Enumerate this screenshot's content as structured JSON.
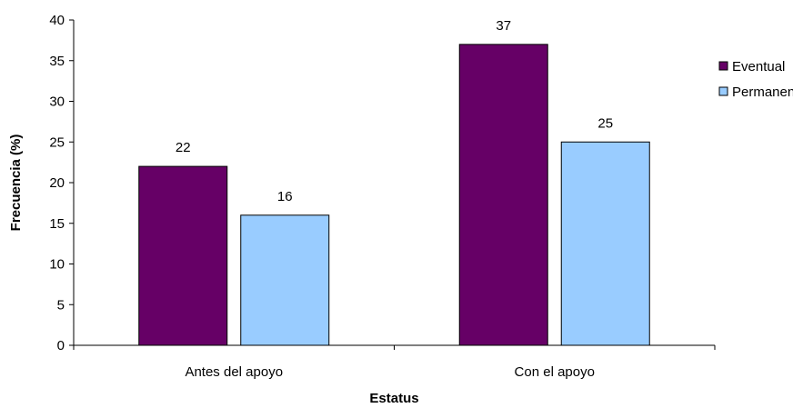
{
  "chart_data": {
    "type": "bar",
    "categories": [
      "Antes del apoyo",
      "Con el apoyo"
    ],
    "series": [
      {
        "name": "Eventual",
        "values": [
          22,
          37
        ],
        "color": "#660066"
      },
      {
        "name": "Permanente",
        "values": [
          16,
          25
        ],
        "color": "#99ccff"
      }
    ],
    "data_labels": [
      [
        "22",
        "37"
      ],
      [
        "16",
        "25"
      ]
    ],
    "xlabel": "Estatus",
    "ylabel": "Frecuencia (%)",
    "ylim": [
      0,
      40
    ],
    "yticks": [
      0,
      5,
      10,
      15,
      20,
      25,
      30,
      35,
      40
    ],
    "ytick_labels": [
      "0",
      "5",
      "10",
      "15",
      "20",
      "25",
      "30",
      "35",
      "40"
    ],
    "grid": false,
    "legend_position": "right"
  }
}
